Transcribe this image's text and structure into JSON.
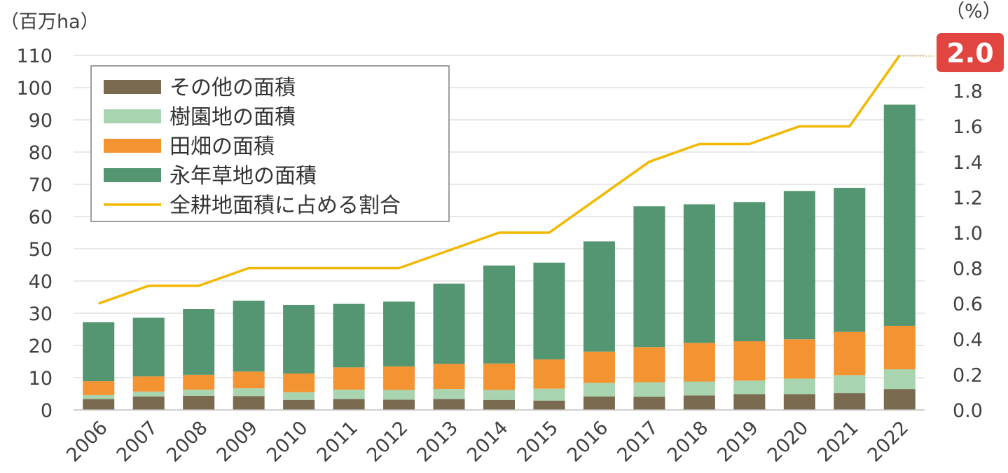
{
  "chart_data": {
    "type": "bar",
    "stacked": true,
    "categories": [
      "2006",
      "2007",
      "2008",
      "2009",
      "2010",
      "2011",
      "2012",
      "2013",
      "2014",
      "2015",
      "2016",
      "2017",
      "2018",
      "2019",
      "2020",
      "2021",
      "2022"
    ],
    "series": [
      {
        "name": "その他の面積",
        "color": "#7a6a4f",
        "axis": "left",
        "values": [
          3.4,
          4.2,
          4.4,
          4.3,
          3.1,
          3.4,
          3.2,
          3.4,
          3.1,
          2.9,
          4.2,
          4.1,
          4.5,
          4.9,
          4.9,
          5.2,
          6.5
        ]
      },
      {
        "name": "樹園地の面積",
        "color": "#a9d4b0",
        "axis": "left",
        "values": [
          1.2,
          1.5,
          1.9,
          2.4,
          2.4,
          2.9,
          3.0,
          3.1,
          3.1,
          3.7,
          4.2,
          4.5,
          4.3,
          4.2,
          4.8,
          5.6,
          6.1
        ]
      },
      {
        "name": "田畑の面積",
        "color": "#f39332",
        "axis": "left",
        "values": [
          4.3,
          4.7,
          4.6,
          5.2,
          5.8,
          6.9,
          7.3,
          7.8,
          8.2,
          9.1,
          9.7,
          10.9,
          12.0,
          12.2,
          12.2,
          13.4,
          13.5
        ]
      },
      {
        "name": "永年草地の面積",
        "color": "#549572",
        "axis": "left",
        "values": [
          18.3,
          18.2,
          20.4,
          22.0,
          21.3,
          19.7,
          20.1,
          24.9,
          30.4,
          30.0,
          34.2,
          43.7,
          43.0,
          43.2,
          46.0,
          44.7,
          68.6
        ]
      },
      {
        "name": "全耕地面積に占める割合",
        "color": "#f2b800",
        "axis": "right",
        "type": "line",
        "values": [
          0.6,
          0.7,
          0.7,
          0.8,
          0.8,
          0.8,
          0.8,
          0.9,
          1.0,
          1.0,
          1.2,
          1.4,
          1.5,
          1.5,
          1.6,
          1.6,
          2.0
        ]
      }
    ],
    "yleft": {
      "unit_label": "（百万ha）",
      "ylim": [
        0,
        110
      ],
      "ticks": [
        "0",
        "10",
        "20",
        "30",
        "40",
        "50",
        "60",
        "70",
        "80",
        "90",
        "100",
        "110"
      ]
    },
    "yright": {
      "unit_label": "（%）",
      "ylim": [
        0,
        2.0
      ],
      "ticks": [
        "0.0",
        "0.2",
        "0.4",
        "0.6",
        "0.8",
        "1.0",
        "1.2",
        "1.4",
        "1.6",
        "1.8"
      ]
    },
    "callout": {
      "text": "2.0",
      "color": "#e0463f"
    },
    "grid": "horizontal",
    "legend": "top-left"
  }
}
